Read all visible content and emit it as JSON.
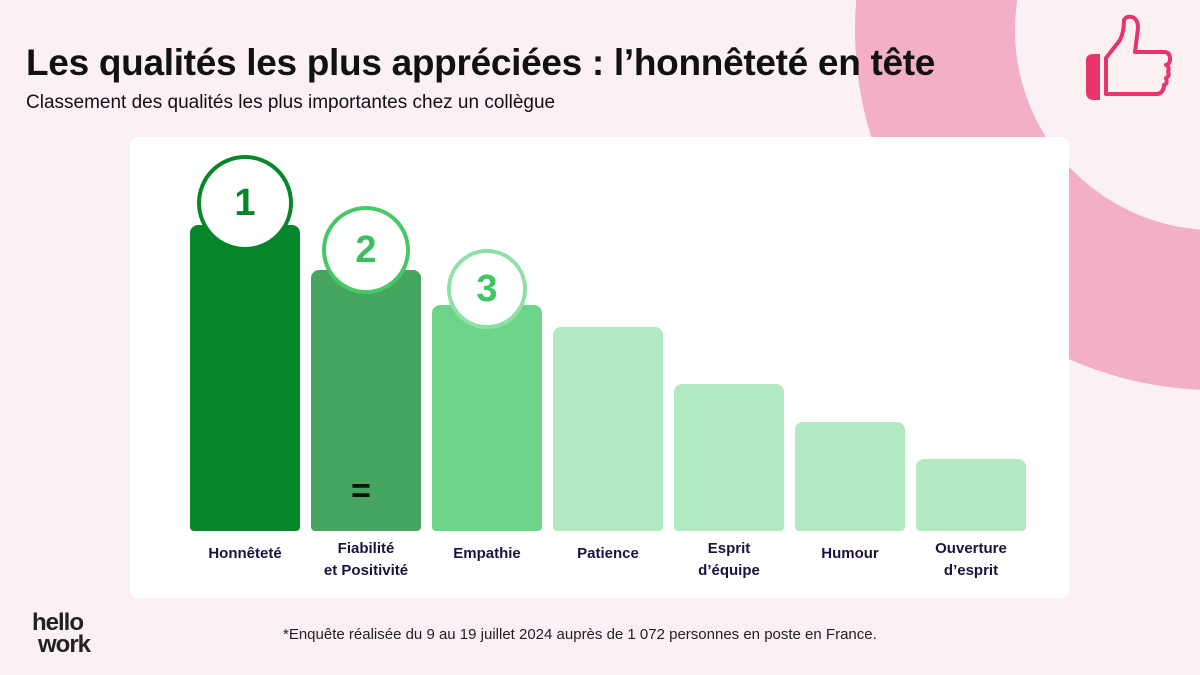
{
  "title": "Les qualités les plus appréciées : l’honnêteté en tête",
  "subtitle": "Classement des qualités les plus importantes chez un collègue",
  "footnote": "*Enquête réalisée du 9 au 19 juillet 2024 auprès de 1 072 personnes en poste en France.",
  "logo": {
    "line1": "hello",
    "line2": "work"
  },
  "icons": [
    "thumbs-up-icon"
  ],
  "colors": {
    "accent": "#e8336b",
    "arc": "#f3b0c5",
    "rank1": "#078629",
    "rank2": "#46a55e",
    "rank3": "#6dd58a",
    "other": "#b1e9c2"
  },
  "chart_data": {
    "type": "bar",
    "title": "Les qualités les plus appréciées : l’honnêteté en tête",
    "categories": [
      "Honnêteté",
      "Fiabilité\net Positivité",
      "Empathie",
      "Patience",
      "Esprit\nd’équipe",
      "Humour",
      "Ouverture\nd’esprit"
    ],
    "values": [
      306,
      261,
      226,
      204,
      147,
      109,
      72
    ],
    "ranks": [
      "1",
      "2",
      "3"
    ],
    "tie_marker": "=",
    "ylim": [
      0,
      320
    ],
    "grid": false
  }
}
